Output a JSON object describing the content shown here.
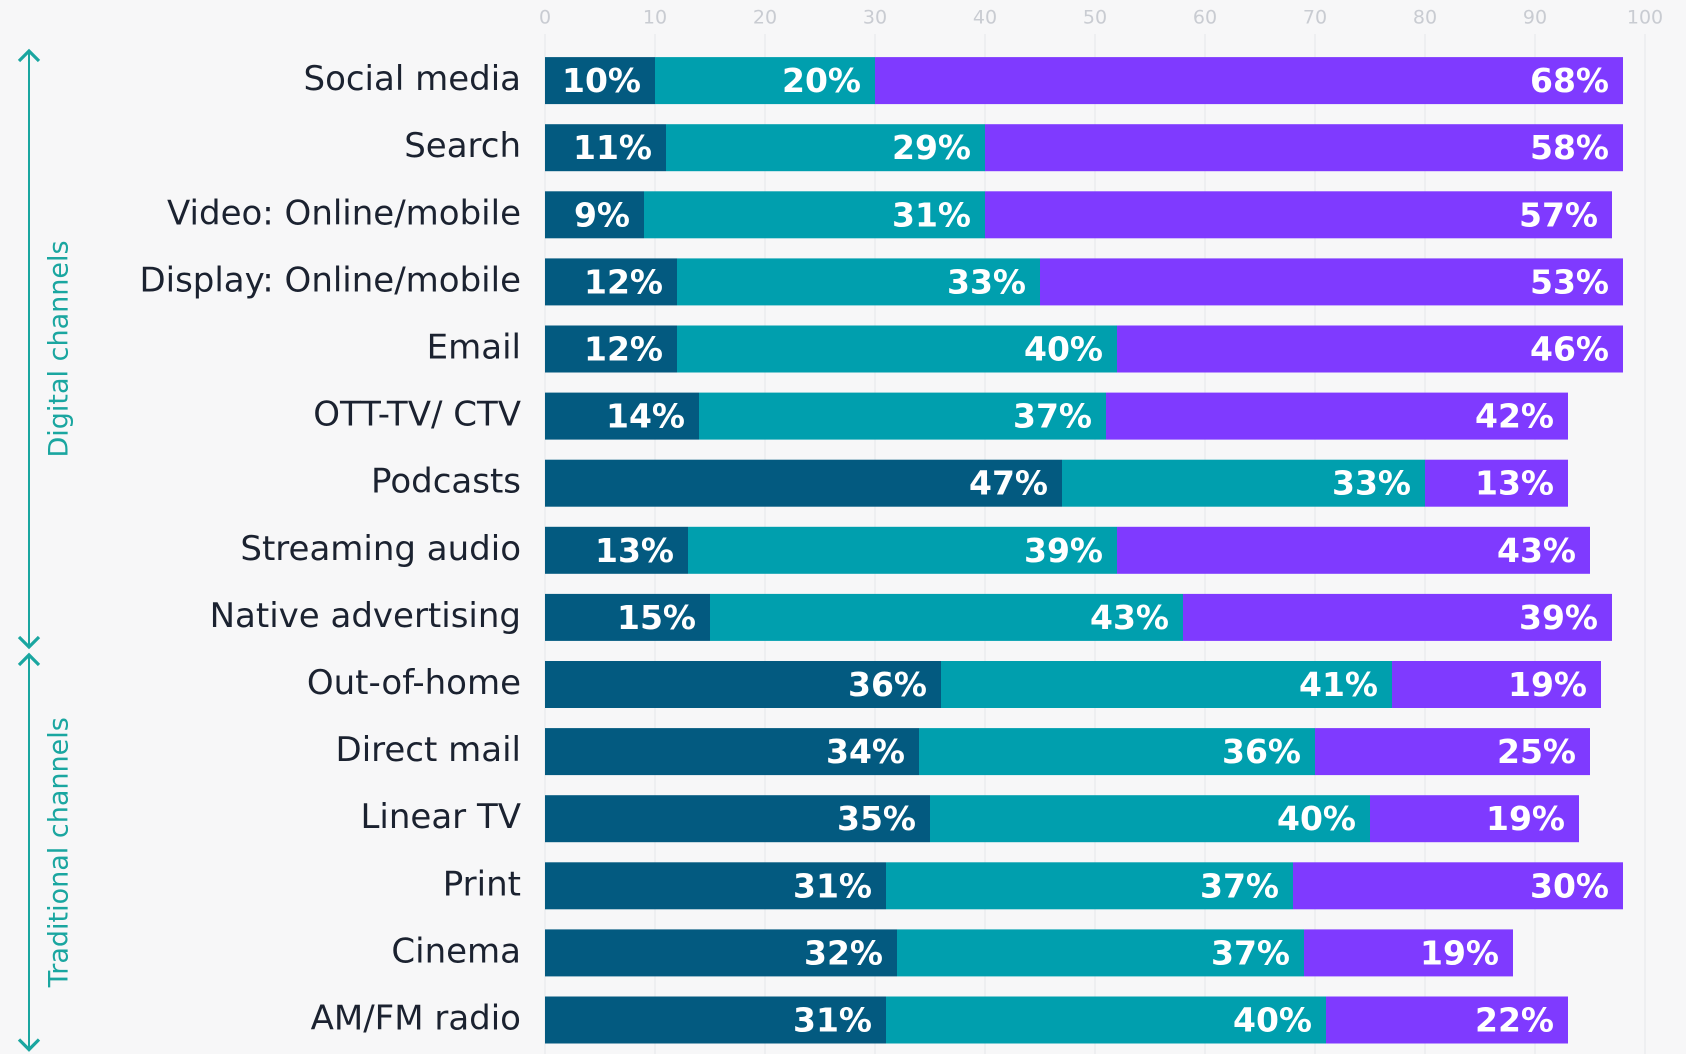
{
  "chart_data": {
    "type": "stacked-bar-horizontal",
    "categories": [
      "Social media",
      "Search",
      "Video: Online/mobile",
      "Display: Online/mobile",
      "Email",
      "OTT-TV/ CTV",
      "Podcasts",
      "Streaming audio",
      "Native advertising",
      "Out-of-home",
      "Direct mail",
      "Linear TV",
      "Print",
      "Cinema",
      "AM/FM radio"
    ],
    "series": [
      {
        "color": "#035a80",
        "values": [
          10,
          11,
          9,
          12,
          12,
          14,
          47,
          13,
          15,
          36,
          34,
          35,
          31,
          32,
          31
        ],
        "value_labels": [
          "10%",
          "11%",
          "9%",
          "12%",
          "12%",
          "14%",
          "47%",
          "13%",
          "15%",
          "36%",
          "34%",
          "35%",
          "31%",
          "32%",
          "31%"
        ]
      },
      {
        "color": "#009fae",
        "values": [
          20,
          29,
          31,
          33,
          40,
          37,
          33,
          39,
          43,
          41,
          36,
          40,
          37,
          37,
          40
        ],
        "value_labels": [
          "20%",
          "29%",
          "31%",
          "33%",
          "40%",
          "37%",
          "33%",
          "39%",
          "43%",
          "41%",
          "36%",
          "40%",
          "37%",
          "37%",
          "40%"
        ]
      },
      {
        "color": "#7f3aff",
        "values": [
          68,
          58,
          57,
          53,
          46,
          42,
          13,
          43,
          39,
          19,
          25,
          19,
          30,
          19,
          22
        ],
        "value_labels": [
          "68%",
          "58%",
          "57%",
          "53%",
          "46%",
          "42%",
          "13%",
          "43%",
          "39%",
          "19%",
          "25%",
          "19%",
          "30%",
          "19%",
          "22%"
        ]
      }
    ],
    "xlim": [
      0,
      100
    ],
    "xticks": [
      0,
      10,
      20,
      30,
      40,
      50,
      60,
      70,
      80,
      90,
      100
    ],
    "grid": true,
    "groups": [
      {
        "label": "Digital channels",
        "from": 0,
        "to": 8
      },
      {
        "label": "Traditional channels",
        "from": 9,
        "to": 14
      }
    ]
  }
}
